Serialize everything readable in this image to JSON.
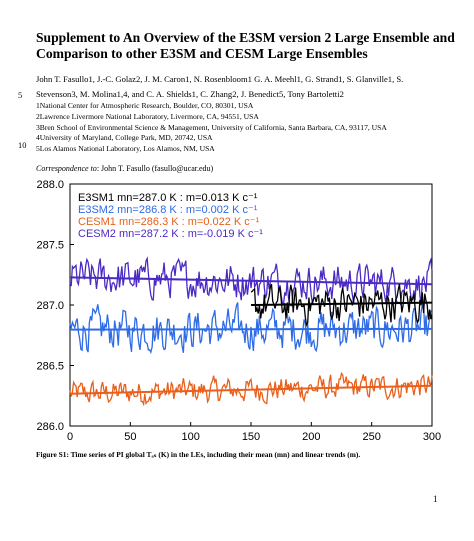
{
  "title": "Supplement to An Overview of the E3SM version 2 Large Ensemble and Comparison to other E3SM and CESM Large Ensembles",
  "line_numbers": [
    "5",
    "10"
  ],
  "authors_line1": "John T. Fasullo1, J.-C. Golaz2, J. M. Caron1, N. Rosenbloom1 G. A. Meehl1, G. Strand1, S. Glanville1, S.",
  "authors_line2": "Stevenson3, M. Molina1,4, and C. A. Shields1, C. Zhang2, J. Benedict5, Tony Bartoletti2",
  "affiliations": [
    "1National Center for Atmospheric Research, Boulder, CO, 80301, USA",
    "2Lawrence Livermore National Laboratory, Livermore, CA, 94551, USA",
    "3Bren School of Environmental Science & Management, University of California, Santa Barbara, CA, 93117, USA",
    "4University of Maryland, College Park, MD, 20742, USA",
    "5Los Alamos National Laboratory, Los Alamos, NM, USA"
  ],
  "correspondence_label": "Correspondence to",
  "correspondence_text": ": John T. Fasullo (fasullo@ucar.edu)",
  "caption": "Figure S1: Time series of PI global Tₐₛ (K) in the LEs, including their mean (mn) and linear trends (m).",
  "page_number": "1",
  "chart_data": {
    "type": "line",
    "x_range": [
      0,
      300
    ],
    "ylim": [
      286.0,
      288.0
    ],
    "x_ticks": [
      0,
      50,
      100,
      150,
      200,
      250,
      300
    ],
    "y_ticks": [
      286.0,
      286.5,
      287.0,
      287.5,
      288.0
    ],
    "legend_placement": "top-left",
    "series": [
      {
        "name": "E3SM1 mn=287.0 K : m=0.013 K c⁻¹",
        "color": "#000000",
        "mean": 287.0,
        "trend_per_century": 0.013,
        "x_start": 150,
        "x_end": 300,
        "amp": 0.12
      },
      {
        "name": "E3SM2 mn=286.8 K : m=0.002 K c⁻¹",
        "color": "#2E6BE6",
        "mean": 286.8,
        "trend_per_century": 0.002,
        "x_start": 0,
        "x_end": 300,
        "amp": 0.13
      },
      {
        "name": "CESM1 mn=286.3 K : m=0.022 K c⁻¹",
        "color": "#E8601C",
        "mean": 286.3,
        "trend_per_century": 0.022,
        "x_start": 0,
        "x_end": 300,
        "amp": 0.08
      },
      {
        "name": "CESM2 mn=287.2 K : m=-0.019 K c⁻¹",
        "color": "#4B2AC4",
        "mean": 287.2,
        "trend_per_century": -0.019,
        "x_start": 0,
        "x_end": 300,
        "amp": 0.12
      }
    ]
  }
}
